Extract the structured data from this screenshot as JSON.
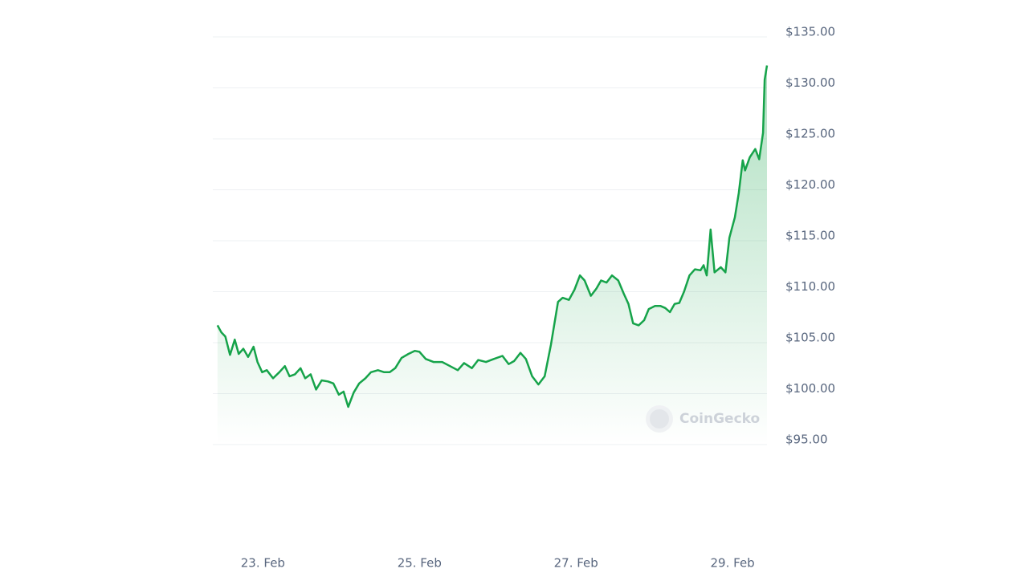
{
  "chart_data": {
    "type": "line",
    "color": "#16a34a",
    "watermark": "CoinGecko",
    "x": [
      22.42,
      22.47,
      22.52,
      22.58,
      22.64,
      22.69,
      22.75,
      22.81,
      22.88,
      22.93,
      22.99,
      23.05,
      23.13,
      23.21,
      23.28,
      23.34,
      23.41,
      23.48,
      23.54,
      23.61,
      23.68,
      23.75,
      23.83,
      23.9,
      23.97,
      24.03,
      24.09,
      24.16,
      24.23,
      24.31,
      24.38,
      24.47,
      24.55,
      24.62,
      24.69,
      24.77,
      24.86,
      24.94,
      25.0,
      25.08,
      25.18,
      25.29,
      25.39,
      25.49,
      25.57,
      25.67,
      25.75,
      25.85,
      25.95,
      26.06,
      26.14,
      26.21,
      26.29,
      26.36,
      26.44,
      26.52,
      26.6,
      26.68,
      26.77,
      26.83,
      26.91,
      26.98,
      27.05,
      27.11,
      27.19,
      27.26,
      27.32,
      27.39,
      27.46,
      27.54,
      27.61,
      27.67,
      27.73,
      27.8,
      27.87,
      27.93,
      28.01,
      28.08,
      28.14,
      28.2,
      28.26,
      28.32,
      28.38,
      28.45,
      28.52,
      28.59,
      28.63,
      28.67,
      28.72,
      28.77,
      28.85,
      28.91,
      28.96,
      29.03,
      29.08,
      29.13,
      29.16,
      29.22,
      29.29,
      29.34,
      29.39,
      29.41,
      29.44
    ],
    "values": [
      106.7,
      106.0,
      105.6,
      103.8,
      105.3,
      103.9,
      104.4,
      103.6,
      104.6,
      103.1,
      102.1,
      102.3,
      101.5,
      102.1,
      102.7,
      101.7,
      101.9,
      102.5,
      101.5,
      101.9,
      100.4,
      101.3,
      101.2,
      101.0,
      99.9,
      100.2,
      98.7,
      100.1,
      101.0,
      101.5,
      102.1,
      102.3,
      102.1,
      102.1,
      102.5,
      103.5,
      103.9,
      104.2,
      104.1,
      103.4,
      103.1,
      103.1,
      102.7,
      102.3,
      103.0,
      102.5,
      103.3,
      103.1,
      103.4,
      103.7,
      102.9,
      103.2,
      104.0,
      103.4,
      101.7,
      100.9,
      101.7,
      104.8,
      109.0,
      109.4,
      109.2,
      110.2,
      111.6,
      111.1,
      109.6,
      110.3,
      111.1,
      110.9,
      111.6,
      111.1,
      109.8,
      108.8,
      106.9,
      106.7,
      107.2,
      108.3,
      108.6,
      108.6,
      108.4,
      108.0,
      108.8,
      108.9,
      110.0,
      111.6,
      112.2,
      112.1,
      112.6,
      111.6,
      116.1,
      111.9,
      112.4,
      111.9,
      115.3,
      117.3,
      119.7,
      122.9,
      121.9,
      123.2,
      124.0,
      123.0,
      125.6,
      130.8,
      132.2
    ],
    "xlim": [
      22.36,
      29.44
    ],
    "xticks": [
      {
        "value": 23,
        "label": "23. Feb"
      },
      {
        "value": 25,
        "label": "25. Feb"
      },
      {
        "value": 27,
        "label": "27. Feb"
      },
      {
        "value": 29,
        "label": "29. Feb"
      }
    ],
    "ylim": [
      95,
      135
    ],
    "yticks": [
      {
        "value": 95,
        "label": "$95.00"
      },
      {
        "value": 100,
        "label": "$100.00"
      },
      {
        "value": 105,
        "label": "$105.00"
      },
      {
        "value": 110,
        "label": "$110.00"
      },
      {
        "value": 115,
        "label": "$115.00"
      },
      {
        "value": 120,
        "label": "$120.00"
      },
      {
        "value": 125,
        "label": "$125.00"
      },
      {
        "value": 130,
        "label": "$130.00"
      },
      {
        "value": 135,
        "label": "$135.00"
      }
    ],
    "grid": true
  }
}
